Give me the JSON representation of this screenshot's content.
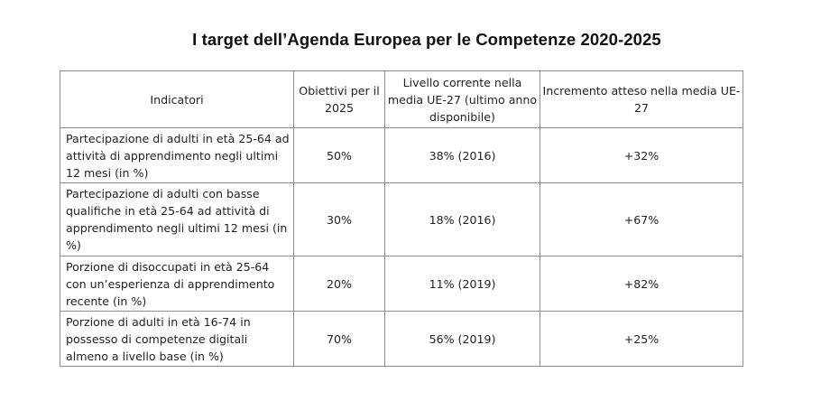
{
  "title": "I target dell’Agenda Europea per le Competenze 2020-2025",
  "table": {
    "headers": [
      "Indicatori",
      "Obiettivi per il 2025",
      "Livello corrente nella media UE-27 (ultimo anno disponibile)",
      "Incremento atteso nella media UE-27"
    ],
    "rows": [
      {
        "indicator": "Partecipazione di adulti in età 25-64 ad attività di apprendimento negli ultimi 12 mesi (in %)",
        "target_2025": "50%",
        "current_level": "38% (2016)",
        "expected_increase": "+32%"
      },
      {
        "indicator": "Partecipazione di adulti con basse qualifiche in età 25-64 ad attività di apprendimento negli ultimi 12 mesi (in %)",
        "target_2025": "30%",
        "current_level": "18% (2016)",
        "expected_increase": "+67%"
      },
      {
        "indicator": "Porzione di disoccupati in età 25-64 con un’esperienza di apprendimento recente (in %)",
        "target_2025": "20%",
        "current_level": "11% (2019)",
        "expected_increase": "+82%"
      },
      {
        "indicator": "Porzione di adulti in età 16-74 in possesso di competenze digitali almeno a livello base (in %)",
        "target_2025": "70%",
        "current_level": "56% (2019)",
        "expected_increase": "+25%"
      }
    ]
  }
}
